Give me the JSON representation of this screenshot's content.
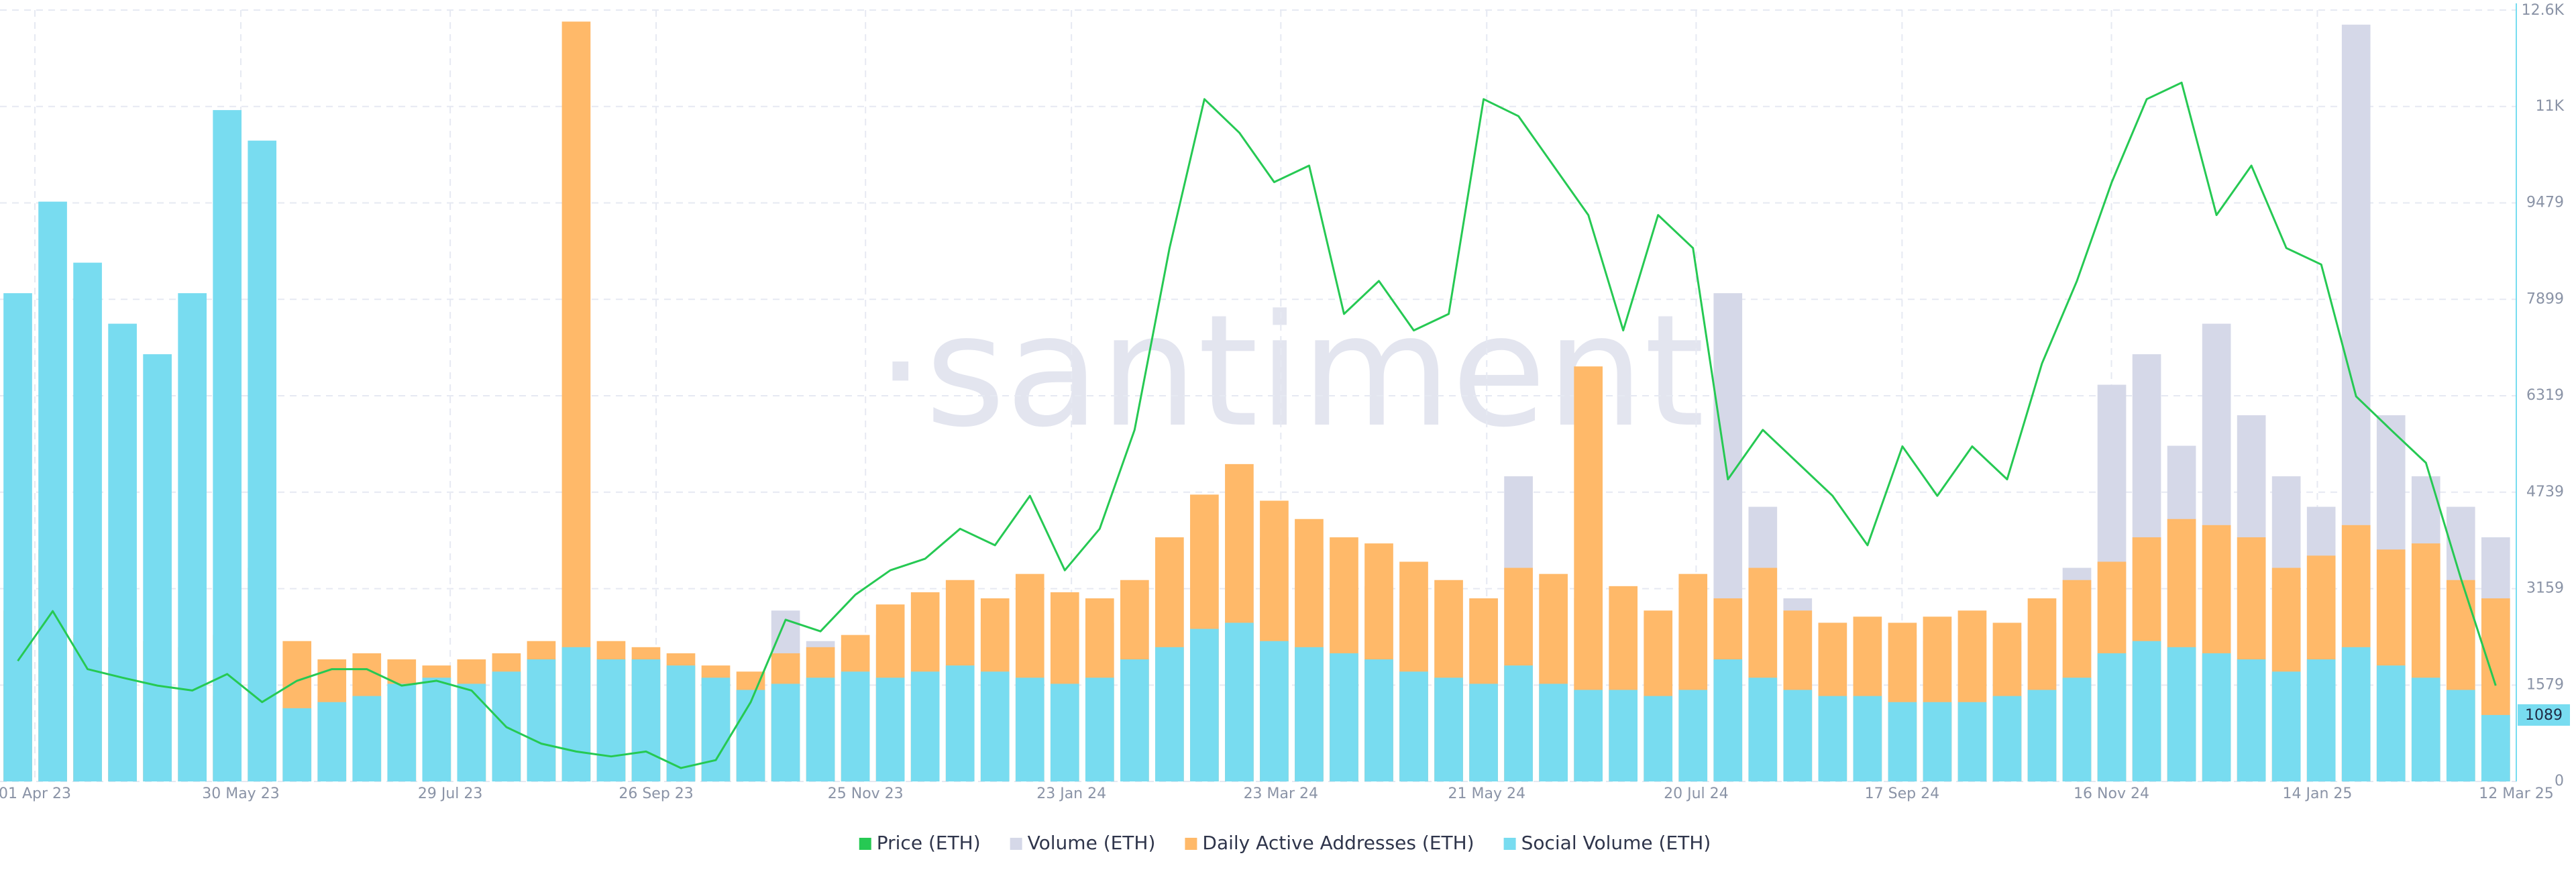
{
  "chart_data": {
    "type": "combo",
    "watermark": "·santiment·",
    "x": [
      "2023-03-23",
      "2023-04-02",
      "2023-04-12",
      "2023-04-22",
      "2023-05-02",
      "2023-05-12",
      "2023-05-22",
      "2023-06-01",
      "2023-06-11",
      "2023-06-21",
      "2023-07-01",
      "2023-07-11",
      "2023-07-21",
      "2023-07-31",
      "2023-08-10",
      "2023-08-20",
      "2023-08-30",
      "2023-09-09",
      "2023-09-19",
      "2023-09-29",
      "2023-10-09",
      "2023-10-19",
      "2023-10-29",
      "2023-11-08",
      "2023-11-18",
      "2023-11-28",
      "2023-12-08",
      "2023-12-18",
      "2023-12-28",
      "2024-01-07",
      "2024-01-17",
      "2024-01-27",
      "2024-02-06",
      "2024-02-16",
      "2024-02-26",
      "2024-03-07",
      "2024-03-17",
      "2024-03-27",
      "2024-04-06",
      "2024-04-16",
      "2024-04-26",
      "2024-05-06",
      "2024-05-16",
      "2024-05-26",
      "2024-06-05",
      "2024-06-15",
      "2024-06-25",
      "2024-07-05",
      "2024-07-15",
      "2024-07-25",
      "2024-08-04",
      "2024-08-14",
      "2024-08-24",
      "2024-09-03",
      "2024-09-13",
      "2024-09-23",
      "2024-10-03",
      "2024-10-13",
      "2024-10-23",
      "2024-11-02",
      "2024-11-12",
      "2024-11-22",
      "2024-12-02",
      "2024-12-12",
      "2024-12-22",
      "2025-01-01",
      "2025-01-11",
      "2025-01-21",
      "2025-01-31",
      "2025-02-10",
      "2025-02-20",
      "2025-03-02"
    ],
    "xlim": [
      "2023-03-22",
      "2025-03-12"
    ],
    "xticks": [
      {
        "value": "2023-04-01",
        "label": "01 Apr 23"
      },
      {
        "value": "2023-05-30",
        "label": "30 May 23"
      },
      {
        "value": "2023-07-29",
        "label": "29 Jul 23"
      },
      {
        "value": "2023-09-26",
        "label": "26 Sep 23"
      },
      {
        "value": "2023-11-25",
        "label": "25 Nov 23"
      },
      {
        "value": "2024-01-23",
        "label": "23 Jan 24"
      },
      {
        "value": "2024-03-23",
        "label": "23 Mar 24"
      },
      {
        "value": "2024-05-21",
        "label": "21 May 24"
      },
      {
        "value": "2024-07-20",
        "label": "20 Jul 24"
      },
      {
        "value": "2024-09-17",
        "label": "17 Sep 24"
      },
      {
        "value": "2024-11-16",
        "label": "16 Nov 24"
      },
      {
        "value": "2025-01-14",
        "label": "14 Jan 25"
      },
      {
        "value": "2025-03-12",
        "label": "12 Mar 25"
      }
    ],
    "ylim": [
      0,
      12639
    ],
    "yticks": [
      0,
      1579,
      3159,
      4739,
      6319,
      7899,
      9479,
      {
        "value": 11059,
        "label": "11K"
      },
      {
        "value": 12639,
        "label": "12.6K"
      }
    ],
    "grid": true,
    "legend": "bottom",
    "series": [
      {
        "name": "Price (ETH)",
        "type": "line",
        "color": "#26c953",
        "values": [
          1975,
          2790,
          1840,
          1700,
          1570,
          1490,
          1760,
          1300,
          1650,
          1840,
          1840,
          1570,
          1650,
          1490,
          890,
          620,
          490,
          410,
          490,
          220,
          350,
          1300,
          2650,
          2460,
          3060,
          3460,
          3650,
          4140,
          3870,
          4680,
          3460,
          4140,
          5760,
          8740,
          11180,
          10630,
          9820,
          10090,
          7660,
          8200,
          7390,
          7660,
          11180,
          10900,
          10090,
          9280,
          7390,
          9280,
          8740,
          4950,
          5760,
          5220,
          4680,
          3870,
          5490,
          4680,
          5490,
          4950,
          6850,
          8200,
          9820,
          11180,
          11450,
          9280,
          10090,
          8740,
          8470,
          6310,
          5760,
          5220,
          3330,
          1570
        ]
      },
      {
        "name": "Volume (ETH)",
        "type": "bar",
        "color": "#d5d8e8",
        "values": [
          1600,
          1500,
          1400,
          1500,
          1300,
          1300,
          1400,
          1500,
          1300,
          1400,
          1500,
          1300,
          1200,
          1400,
          1500,
          1300,
          1200,
          1300,
          1400,
          1300,
          1200,
          1500,
          2800,
          2300,
          2200,
          2400,
          2500,
          2700,
          2600,
          2800,
          2500,
          2600,
          3200,
          3800,
          4200,
          4600,
          4000,
          3800,
          3300,
          3200,
          3000,
          2800,
          3000,
          5000,
          3300,
          3000,
          2800,
          2700,
          2600,
          8000,
          4500,
          3000,
          2600,
          2500,
          2400,
          2300,
          2400,
          2300,
          2600,
          3500,
          6500,
          7000,
          5500,
          7500,
          6000,
          5000,
          4500,
          12400,
          6000,
          5000,
          4500,
          4000
        ]
      },
      {
        "name": "Daily Active Addresses (ETH)",
        "type": "bar",
        "color": "#ffb969",
        "values": [
          2800,
          3800,
          2400,
          2200,
          2300,
          2200,
          2400,
          3500,
          2300,
          2000,
          2100,
          2000,
          1900,
          2000,
          2100,
          2300,
          12450,
          2300,
          2200,
          2100,
          1900,
          1800,
          2100,
          2200,
          2400,
          2900,
          3100,
          3300,
          3000,
          3400,
          3100,
          3000,
          3300,
          4000,
          4700,
          5200,
          4600,
          4300,
          4000,
          3900,
          3600,
          3300,
          3000,
          3500,
          3400,
          6800,
          3200,
          2800,
          3400,
          3000,
          3500,
          2800,
          2600,
          2700,
          2600,
          2700,
          2800,
          2600,
          3000,
          3300,
          3600,
          4000,
          4300,
          4200,
          4000,
          3500,
          3700,
          4200,
          3800,
          3900,
          3300,
          3000
        ]
      },
      {
        "name": "Social Volume (ETH)",
        "type": "bar",
        "color": "#78dcf0",
        "values": [
          8000,
          9500,
          8500,
          7500,
          7000,
          8000,
          11000,
          10500,
          1200,
          1300,
          1400,
          1600,
          1700,
          1600,
          1800,
          2000,
          2200,
          2000,
          2000,
          1900,
          1700,
          1500,
          1600,
          1700,
          1800,
          1700,
          1800,
          1900,
          1800,
          1700,
          1600,
          1700,
          2000,
          2200,
          2500,
          2600,
          2300,
          2200,
          2100,
          2000,
          1800,
          1700,
          1600,
          1900,
          1600,
          1500,
          1500,
          1400,
          1500,
          2000,
          1700,
          1500,
          1400,
          1400,
          1300,
          1300,
          1300,
          1400,
          1500,
          1700,
          2100,
          2300,
          2200,
          2100,
          2000,
          1800,
          2000,
          2200,
          1900,
          1700,
          1500,
          1089
        ]
      }
    ]
  }
}
